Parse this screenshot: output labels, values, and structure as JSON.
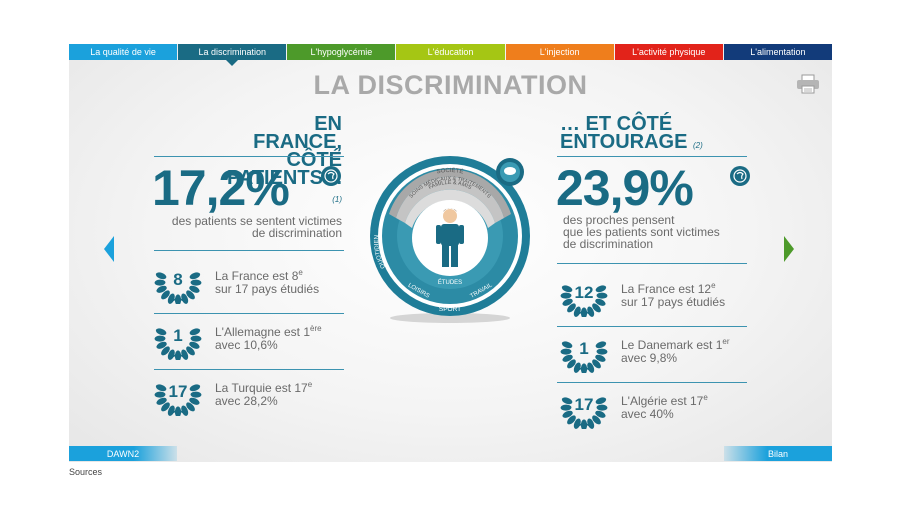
{
  "tabs": [
    {
      "label": "La qualité de vie",
      "color": "#1ba1dc"
    },
    {
      "label": "La discrimination",
      "color": "#1a6b84"
    },
    {
      "label": "L'hypoglycémie",
      "color": "#4d9a2a"
    },
    {
      "label": "L'éducation",
      "color": "#a5c614"
    },
    {
      "label": "L'injection",
      "color": "#ef7e1c"
    },
    {
      "label": "L'activité physique",
      "color": "#e2231a"
    },
    {
      "label": "L'alimentation",
      "color": "#123b7a"
    }
  ],
  "active_tab": "La discrimination",
  "page_title": "LA DISCRIMINATION",
  "left": {
    "title_line1": "EN FRANCE,",
    "title_line2": "CÔTÉ PATIENTS…",
    "note": "(1)",
    "percent": "17,2%",
    "desc_line1": "des patients se sentent victimes",
    "desc_line2": "de discrimination",
    "ranks": [
      {
        "num": "8",
        "line1_pre": "La France est 8",
        "sup": "e",
        "line2": "sur 17 pays étudiés"
      },
      {
        "num": "1",
        "line1_pre": "L'Allemagne est 1",
        "sup": "ère",
        "line2": "avec 10,6%"
      },
      {
        "num": "17",
        "line1_pre": "La Turquie est 17",
        "sup": "e",
        "line2": "avec 28,2%"
      }
    ]
  },
  "right": {
    "title_line1": "… ET CÔTÉ",
    "title_line2": "ENTOURAGE",
    "note": "(2)",
    "percent": "23,9%",
    "desc_line1": "des proches pensent",
    "desc_line2": "que les patients sont victimes",
    "desc_line3": "de discrimination",
    "ranks": [
      {
        "num": "12",
        "line1_pre": "La France est 12",
        "sup": "e",
        "line2": "sur 17 pays étudiés"
      },
      {
        "num": "1",
        "line1_pre": "Le Danemark est 1",
        "sup": "er",
        "line2": "avec 9,8%"
      },
      {
        "num": "17",
        "line1_pre": "L'Algérie est 17",
        "sup": "e",
        "line2": "avec 40%"
      }
    ]
  },
  "diagram": {
    "outer_top": "SOCIÉTÉ",
    "mid_top": "SOINS MÉDICAUX & TRAITEMENTS",
    "inner_top": "FAMILLE & AMIS",
    "left_label": "QUOTIDIEN",
    "bottom_left": "LOISIRS",
    "bottom_center": "ÉTUDES",
    "bottom_right": "TRAVAIL",
    "bottom_outer": "SPORT"
  },
  "bottom": {
    "left_label": "DAWN2",
    "right_label": "Bilan",
    "sources": "Sources"
  },
  "colors": {
    "teal_dark": "#1a6b84",
    "teal": "#2489a4",
    "accent_blue": "#1ba1dc"
  }
}
